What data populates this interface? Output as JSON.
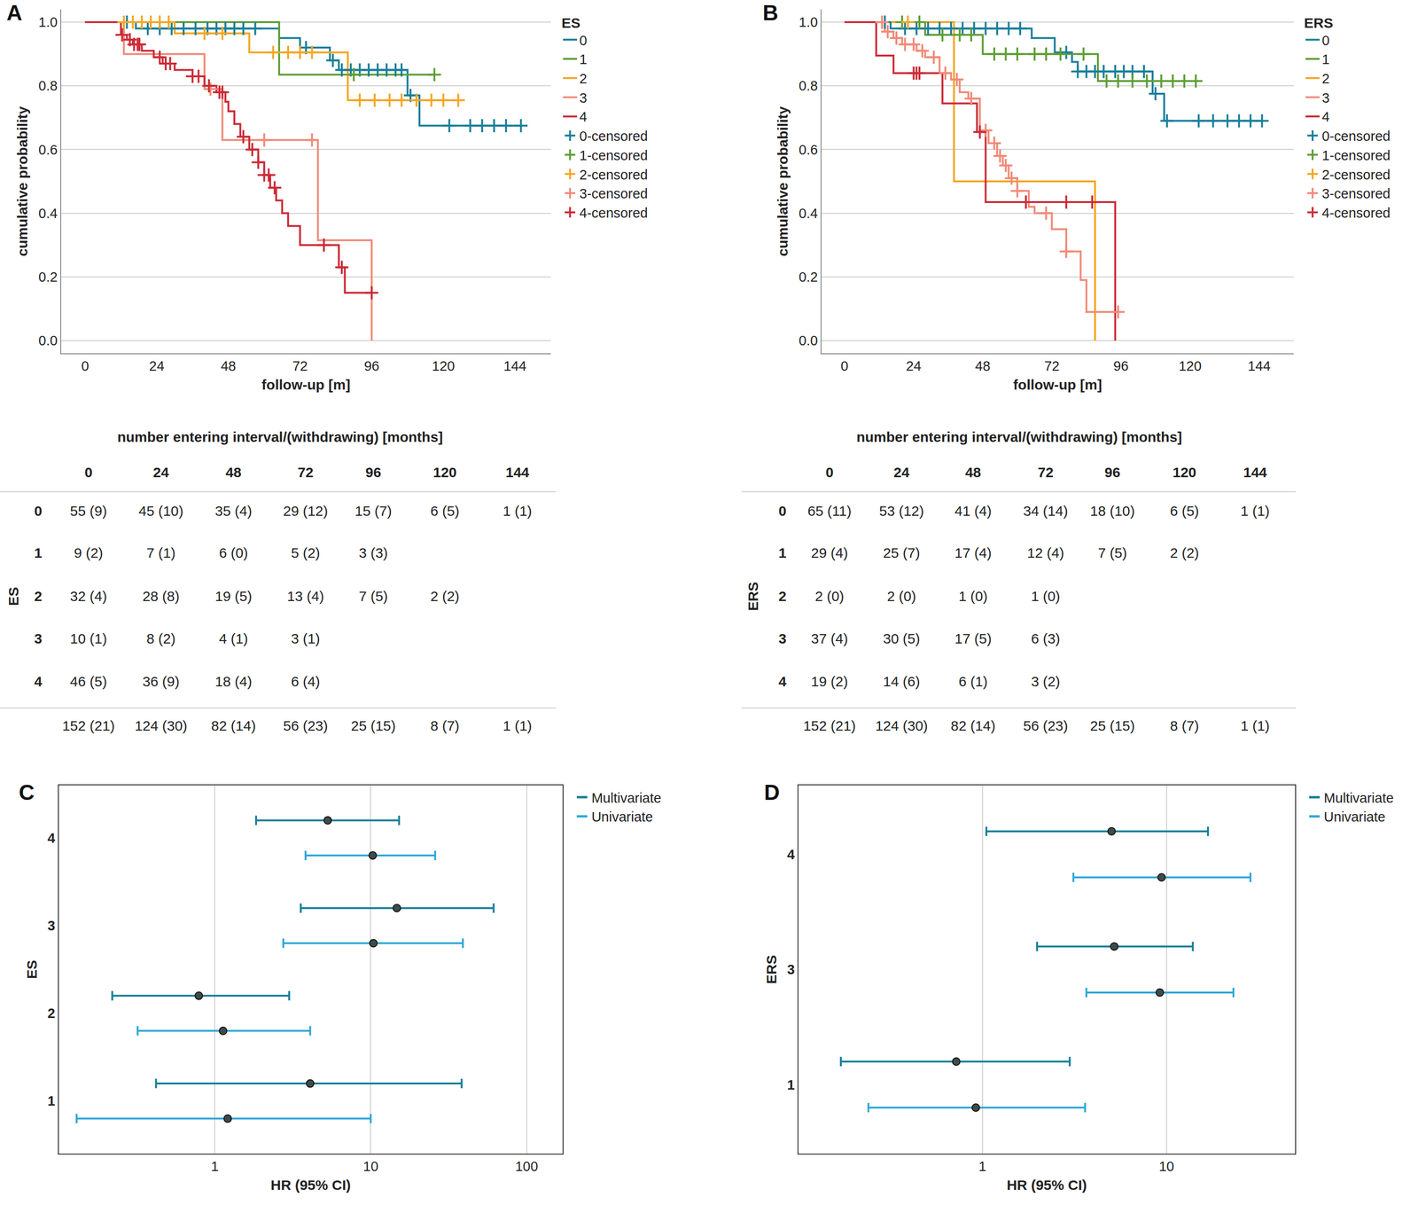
{
  "chart_data": [
    {
      "panel": "A",
      "type": "step",
      "xlabel": "follow-up [m]",
      "ylabel": "cumulative probability",
      "legend_title": "ES",
      "legend": "right",
      "grid": "y",
      "xlim": [
        -8,
        156
      ],
      "xticks": [
        0,
        24,
        48,
        72,
        96,
        120,
        144
      ],
      "ylim": [
        -0.04,
        1.04
      ],
      "yticks": [
        {
          "value": 0,
          "label": "0.0"
        },
        0.2,
        0.4,
        0.6,
        0.8,
        {
          "value": 1,
          "label": "1.0"
        }
      ],
      "series": [
        {
          "name": "0",
          "type": "step",
          "color": "#1a7f9b",
          "x": [
            0,
            17,
            65,
            72,
            82,
            85,
            108,
            112,
            146
          ],
          "values": [
            1,
            0.98,
            0.95,
            0.92,
            0.88,
            0.85,
            0.77,
            0.675,
            0.675
          ]
        },
        {
          "name": "1",
          "type": "step",
          "color": "#5e9e35",
          "x": [
            0,
            65,
            117
          ],
          "values": [
            1,
            0.835,
            0.835
          ]
        },
        {
          "name": "2",
          "type": "step",
          "color": "#f5a623",
          "x": [
            0,
            30,
            55,
            88,
            125
          ],
          "values": [
            1,
            0.965,
            0.905,
            0.755,
            0.755
          ]
        },
        {
          "name": "3",
          "type": "step",
          "color": "#f28a78",
          "x": [
            0,
            13,
            40,
            46,
            78,
            96
          ],
          "values": [
            1,
            0.9,
            0.79,
            0.63,
            0.315,
            0
          ]
        },
        {
          "name": "4",
          "type": "step",
          "color": "#cc2b38",
          "x": [
            0,
            12,
            14,
            16,
            19,
            23,
            26,
            30,
            36,
            40,
            44,
            47,
            48,
            50,
            52,
            55,
            58,
            60,
            62,
            64,
            66,
            68,
            72,
            85,
            87,
            96
          ],
          "values": [
            1,
            0.96,
            0.945,
            0.93,
            0.91,
            0.89,
            0.87,
            0.85,
            0.83,
            0.8,
            0.78,
            0.75,
            0.72,
            0.68,
            0.64,
            0.6,
            0.56,
            0.52,
            0.48,
            0.44,
            0.4,
            0.36,
            0.3,
            0.23,
            0.15,
            0.15
          ]
        },
        {
          "name": "0-censored",
          "type": "scatter",
          "marker": "cross",
          "color": "#1a7f9b",
          "x": [
            14,
            21,
            25,
            29,
            33,
            37,
            41,
            44,
            47,
            50,
            53,
            57,
            74,
            83,
            86,
            89,
            92,
            95,
            98,
            101,
            104,
            106,
            109,
            122,
            129,
            133,
            137,
            141,
            146
          ],
          "values": [
            1,
            0.98,
            0.98,
            0.98,
            0.98,
            0.98,
            0.98,
            0.98,
            0.98,
            0.98,
            0.98,
            0.98,
            0.92,
            0.88,
            0.85,
            0.85,
            0.85,
            0.85,
            0.85,
            0.85,
            0.85,
            0.85,
            0.77,
            0.675,
            0.675,
            0.675,
            0.675,
            0.675,
            0.675
          ]
        },
        {
          "name": "1-censored",
          "type": "scatter",
          "marker": "cross",
          "color": "#5e9e35",
          "x": [
            90,
            117
          ],
          "values": [
            0.835,
            0.835
          ]
        },
        {
          "name": "2-censored",
          "type": "scatter",
          "marker": "cross",
          "color": "#f5a623",
          "x": [
            13,
            16,
            19,
            22,
            25,
            28,
            40,
            46,
            63,
            68,
            72,
            76,
            92,
            97,
            102,
            106,
            111,
            116,
            120,
            125
          ],
          "values": [
            1,
            1,
            1,
            1,
            1,
            1,
            0.965,
            0.965,
            0.905,
            0.905,
            0.905,
            0.905,
            0.755,
            0.755,
            0.755,
            0.755,
            0.755,
            0.755,
            0.755,
            0.755
          ]
        },
        {
          "name": "3-censored",
          "type": "scatter",
          "marker": "cross",
          "color": "#f28a78",
          "x": [
            42,
            60,
            76
          ],
          "values": [
            0.79,
            0.63,
            0.63
          ]
        },
        {
          "name": "4-censored",
          "type": "scatter",
          "marker": "cross",
          "color": "#cc2b38",
          "x": [
            12.4,
            15,
            16.4,
            17.6,
            18.2,
            25,
            27,
            28.5,
            36,
            38,
            41.5,
            45,
            46,
            53,
            56,
            58,
            60,
            61.5,
            63.5,
            80,
            86,
            96
          ],
          "values": [
            0.96,
            0.945,
            0.93,
            0.93,
            0.93,
            0.89,
            0.87,
            0.87,
            0.83,
            0.83,
            0.8,
            0.78,
            0.78,
            0.64,
            0.6,
            0.56,
            0.52,
            0.52,
            0.48,
            0.3,
            0.23,
            0.15
          ]
        }
      ]
    },
    {
      "panel": "B",
      "type": "step",
      "xlabel": "follow-up [m]",
      "ylabel": "cumulative probability",
      "legend_title": "ERS",
      "legend": "right",
      "grid": "y",
      "xlim": [
        -8,
        156
      ],
      "xticks": [
        0,
        24,
        48,
        72,
        96,
        120,
        144
      ],
      "ylim": [
        -0.04,
        1.04
      ],
      "yticks": [
        {
          "value": 0,
          "label": "0.0"
        },
        0.2,
        0.4,
        0.6,
        0.8,
        {
          "value": 1,
          "label": "1.0"
        }
      ],
      "series": [
        {
          "name": "0",
          "type": "step",
          "color": "#1a7f9b",
          "x": [
            0,
            16,
            65,
            73,
            79,
            81,
            107,
            111,
            145
          ],
          "values": [
            1,
            0.98,
            0.95,
            0.905,
            0.875,
            0.845,
            0.775,
            0.69,
            0.69
          ]
        },
        {
          "name": "1",
          "type": "step",
          "color": "#5e9e35",
          "x": [
            0,
            28,
            48,
            88,
            122
          ],
          "values": [
            1,
            0.96,
            0.9,
            0.815,
            0.815
          ]
        },
        {
          "name": "2",
          "type": "step",
          "color": "#f5a623",
          "x": [
            0,
            38,
            87
          ],
          "values": [
            1,
            0.5,
            0
          ]
        },
        {
          "name": "3",
          "type": "step",
          "color": "#f28a78",
          "x": [
            0,
            14,
            17,
            20,
            25,
            28,
            33,
            37,
            40,
            43,
            47,
            50,
            53,
            55,
            57,
            60,
            64,
            66,
            72,
            77,
            82,
            84,
            95
          ],
          "values": [
            1,
            0.97,
            0.95,
            0.93,
            0.91,
            0.89,
            0.84,
            0.82,
            0.78,
            0.76,
            0.66,
            0.62,
            0.58,
            0.55,
            0.51,
            0.47,
            0.42,
            0.4,
            0.35,
            0.28,
            0.19,
            0.09,
            0.09
          ]
        },
        {
          "name": "4",
          "type": "step",
          "color": "#cc2b38",
          "x": [
            0,
            11,
            17,
            34,
            46,
            49,
            94
          ],
          "values": [
            1,
            0.895,
            0.84,
            0.745,
            0.655,
            0.435,
            0
          ]
        },
        {
          "name": "0-censored",
          "type": "scatter",
          "marker": "cross",
          "color": "#1a7f9b",
          "x": [
            14,
            21,
            25,
            29,
            33,
            37,
            41,
            45,
            49,
            53,
            57,
            61,
            77,
            81,
            84,
            87,
            90,
            94,
            97,
            100,
            104,
            108,
            112,
            123,
            128,
            133,
            137,
            141,
            145
          ],
          "values": [
            1,
            0.98,
            0.98,
            0.98,
            0.98,
            0.98,
            0.98,
            0.98,
            0.98,
            0.98,
            0.98,
            0.98,
            0.905,
            0.845,
            0.845,
            0.845,
            0.845,
            0.845,
            0.845,
            0.845,
            0.845,
            0.775,
            0.69,
            0.69,
            0.69,
            0.69,
            0.69,
            0.69,
            0.69
          ]
        },
        {
          "name": "1-censored",
          "type": "scatter",
          "marker": "cross",
          "color": "#5e9e35",
          "x": [
            20,
            26,
            34,
            40,
            44,
            52,
            56,
            60,
            66,
            70,
            75,
            83,
            91,
            95,
            100,
            105,
            110,
            114,
            118,
            122
          ],
          "values": [
            1,
            1,
            0.96,
            0.96,
            0.96,
            0.9,
            0.9,
            0.9,
            0.9,
            0.9,
            0.9,
            0.9,
            0.815,
            0.815,
            0.815,
            0.815,
            0.815,
            0.815,
            0.815,
            0.815
          ]
        },
        {
          "name": "2-censored",
          "type": "scatter",
          "marker": "cross",
          "color": "#f5a623",
          "x": [
            22
          ],
          "values": [
            1
          ]
        },
        {
          "name": "3-censored",
          "type": "scatter",
          "marker": "cross",
          "color": "#f28a78",
          "x": [
            13,
            15,
            18,
            21,
            24,
            27,
            31,
            35,
            39,
            44,
            49,
            52,
            54,
            56,
            58,
            60,
            70,
            77,
            95
          ],
          "values": [
            1,
            0.97,
            0.95,
            0.93,
            0.93,
            0.91,
            0.89,
            0.84,
            0.82,
            0.76,
            0.66,
            0.62,
            0.58,
            0.55,
            0.51,
            0.47,
            0.4,
            0.28,
            0.09
          ]
        },
        {
          "name": "4-censored",
          "type": "scatter",
          "marker": "cross",
          "color": "#cc2b38",
          "x": [
            24,
            25,
            26,
            47,
            63,
            77,
            86
          ],
          "values": [
            0.84,
            0.84,
            0.84,
            0.655,
            0.435,
            0.435,
            0.435
          ]
        }
      ]
    },
    {
      "panel": "C",
      "type": "forest",
      "xlabel": "HR (95% CI)",
      "ylabel": "ES",
      "log": "x",
      "grid": "x",
      "legend": "right",
      "xlim": [
        0.1,
        170
      ],
      "xticks": [
        1,
        10,
        100
      ],
      "categories": [
        "4",
        "3",
        "2",
        "1"
      ],
      "series": [
        {
          "name": "Multivariate",
          "color": "#167f99",
          "marker": "circle",
          "values": [
            5.3,
            14.7,
            0.79,
            4.09
          ],
          "ci_low": [
            1.84,
            3.56,
            0.22,
            0.42
          ],
          "ci_high": [
            15.2,
            61.4,
            3.0,
            38.3
          ]
        },
        {
          "name": "Univariate",
          "color": "#2fa7d8",
          "marker": "circle",
          "values": [
            10.3,
            10.4,
            1.13,
            1.21
          ],
          "ci_low": [
            3.82,
            2.75,
            0.32,
            0.13
          ],
          "ci_high": [
            25.9,
            39,
            4.09,
            10
          ]
        }
      ]
    },
    {
      "panel": "D",
      "type": "forest",
      "xlabel": "HR (95% CI)",
      "ylabel": "ERS",
      "log": "x",
      "grid": "x",
      "legend": "right",
      "xlim": [
        0.1,
        50
      ],
      "xticks": [
        1,
        10
      ],
      "categories": [
        "4",
        "3",
        "1"
      ],
      "series": [
        {
          "name": "Multivariate",
          "color": "#167f99",
          "marker": "circle",
          "values": [
            5.03,
            5.2,
            0.72
          ],
          "ci_low": [
            1.05,
            1.98,
            0.17
          ],
          "ci_high": [
            16.8,
            13.9,
            2.98
          ]
        },
        {
          "name": "Univariate",
          "color": "#2fa7d8",
          "marker": "circle",
          "values": [
            9.4,
            9.2,
            0.92
          ],
          "ci_low": [
            3.12,
            3.67,
            0.24
          ],
          "ci_high": [
            28.6,
            23.1,
            3.61
          ]
        }
      ]
    }
  ],
  "tables": [
    {
      "panel": "A",
      "title": "number entering interval/(withdrawing) [months]",
      "row_label": "ES",
      "columns": [
        "0",
        "24",
        "48",
        "72",
        "96",
        "120",
        "144"
      ],
      "rows": [
        {
          "label": "0",
          "cells": [
            "55 (9)",
            "45 (10)",
            "35 (4)",
            "29 (12)",
            "15 (7)",
            "6 (5)",
            "1 (1)"
          ]
        },
        {
          "label": "1",
          "cells": [
            "9 (2)",
            "7 (1)",
            "6 (0)",
            "5 (2)",
            "3 (3)",
            null,
            null
          ]
        },
        {
          "label": "2",
          "cells": [
            "32 (4)",
            "28 (8)",
            "19 (5)",
            "13 (4)",
            "7 (5)",
            "2 (2)",
            null
          ]
        },
        {
          "label": "3",
          "cells": [
            "10 (1)",
            "8 (2)",
            "4 (1)",
            "3 (1)",
            null,
            null,
            null
          ]
        },
        {
          "label": "4",
          "cells": [
            "46 (5)",
            "36 (9)",
            "18 (4)",
            "6 (4)",
            null,
            null,
            null
          ]
        },
        {
          "label": null,
          "cells": [
            "152 (21)",
            "124 (30)",
            "82 (14)",
            "56 (23)",
            "25 (15)",
            "8 (7)",
            "1 (1)"
          ]
        }
      ]
    },
    {
      "panel": "B",
      "title": "number entering interval/(withdrawing) [months]",
      "row_label": "ERS",
      "columns": [
        "0",
        "24",
        "48",
        "72",
        "96",
        "120",
        "144"
      ],
      "rows": [
        {
          "label": "0",
          "cells": [
            "65 (11)",
            "53 (12)",
            "41 (4)",
            "34 (14)",
            "18 (10)",
            "6 (5)",
            "1 (1)"
          ]
        },
        {
          "label": "1",
          "cells": [
            "29 (4)",
            "25 (7)",
            "17 (4)",
            "12 (4)",
            "7 (5)",
            "2 (2)",
            null
          ]
        },
        {
          "label": "2",
          "cells": [
            "2 (0)",
            "2 (0)",
            "1 (0)",
            "1 (0)",
            null,
            null,
            null
          ]
        },
        {
          "label": "3",
          "cells": [
            "37 (4)",
            "30 (5)",
            "17 (5)",
            "6 (3)",
            null,
            null,
            null
          ]
        },
        {
          "label": "4",
          "cells": [
            "19 (2)",
            "14 (6)",
            "6 (1)",
            "3 (2)",
            null,
            null,
            null
          ]
        },
        {
          "label": null,
          "cells": [
            "152 (21)",
            "124 (30)",
            "82 (14)",
            "56 (23)",
            "25 (15)",
            "8 (7)",
            "1 (1)"
          ]
        }
      ]
    }
  ]
}
